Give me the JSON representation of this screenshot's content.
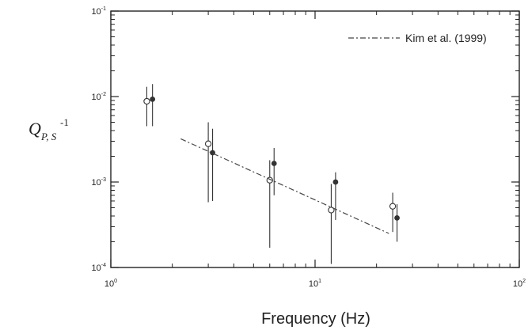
{
  "chart_data": {
    "type": "scatter",
    "title": "",
    "xlabel": "Frequency  (Hz)",
    "ylabel": {
      "main": "Q",
      "sub": "P, S",
      "sup": "-1"
    },
    "x_scale": "log",
    "y_scale": "log",
    "xlim": [
      1,
      100
    ],
    "ylim": [
      0.0001,
      0.1
    ],
    "x_ticks": [
      {
        "value": 1,
        "base": "10",
        "exp": "0"
      },
      {
        "value": 10,
        "base": "10",
        "exp": "1"
      },
      {
        "value": 100,
        "base": "10",
        "exp": "2"
      }
    ],
    "y_ticks": [
      {
        "value": 0.0001,
        "base": "10",
        "exp": "-4"
      },
      {
        "value": 0.001,
        "base": "10",
        "exp": "-3"
      },
      {
        "value": 0.01,
        "base": "10",
        "exp": "-2"
      },
      {
        "value": 0.1,
        "base": "10",
        "exp": "-1"
      }
    ],
    "grid": false,
    "legend_position": "top-right",
    "series": [
      {
        "marker": "open-circle",
        "points": [
          {
            "x": 1.5,
            "y": 0.0088,
            "lo": 0.0045,
            "hi": 0.013
          },
          {
            "x": 3.0,
            "y": 0.0028,
            "lo": 0.00058,
            "hi": 0.005
          },
          {
            "x": 6.0,
            "y": 0.00105,
            "lo": 0.00017,
            "hi": 0.0018
          },
          {
            "x": 12.0,
            "y": 0.00047,
            "lo": 0.00011,
            "hi": 0.00095
          },
          {
            "x": 24.0,
            "y": 0.00052,
            "lo": 0.00026,
            "hi": 0.00075
          }
        ]
      },
      {
        "marker": "filled-circle",
        "points": [
          {
            "x": 1.6,
            "y": 0.0093,
            "lo": 0.0045,
            "hi": 0.014
          },
          {
            "x": 3.15,
            "y": 0.0022,
            "lo": 0.0006,
            "hi": 0.0042
          },
          {
            "x": 6.3,
            "y": 0.00165,
            "lo": 0.0007,
            "hi": 0.0025
          },
          {
            "x": 12.6,
            "y": 0.001,
            "lo": 0.00036,
            "hi": 0.0013
          },
          {
            "x": 25.2,
            "y": 0.00038,
            "lo": 0.0002,
            "hi": 0.00055
          }
        ]
      },
      {
        "name": "Kim et al. (1999)",
        "style": "dash-dot",
        "line": [
          {
            "x": 2.2,
            "y": 0.0032
          },
          {
            "x": 23.0,
            "y": 0.00025
          }
        ]
      }
    ]
  }
}
